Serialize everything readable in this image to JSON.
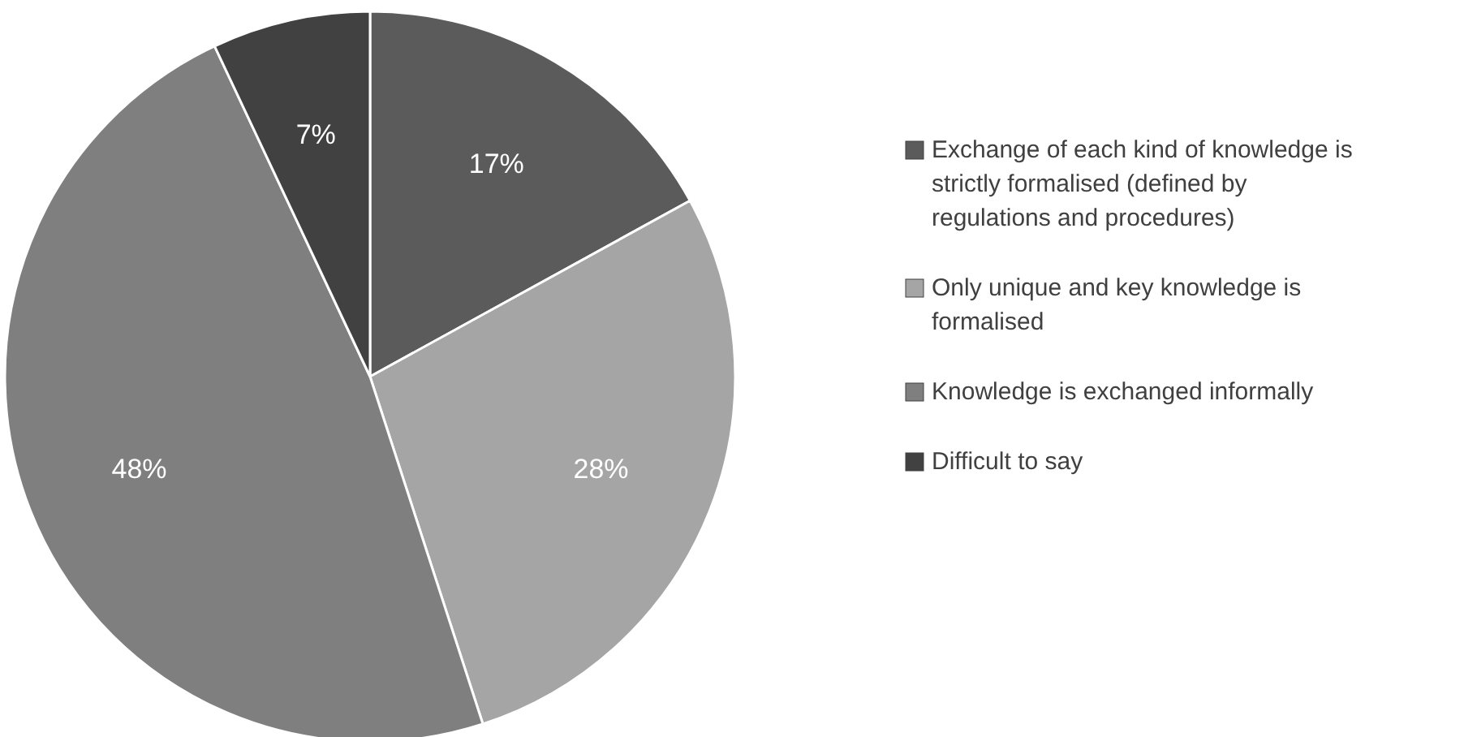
{
  "chart_data": {
    "type": "pie",
    "categories": [
      "Exchange of each kind of knowledge is strictly formalised (defined by regulations and procedures)",
      "Only unique and key knowledge is formalised",
      "Knowledge is exchanged informally",
      "Difficult to say"
    ],
    "values": [
      17,
      28,
      48,
      7
    ],
    "value_labels": [
      "17%",
      "28%",
      "48%",
      "7%"
    ],
    "colors": [
      "#5b5b5b",
      "#a5a5a5",
      "#7f7f7f",
      "#414141"
    ],
    "legend": "right"
  }
}
